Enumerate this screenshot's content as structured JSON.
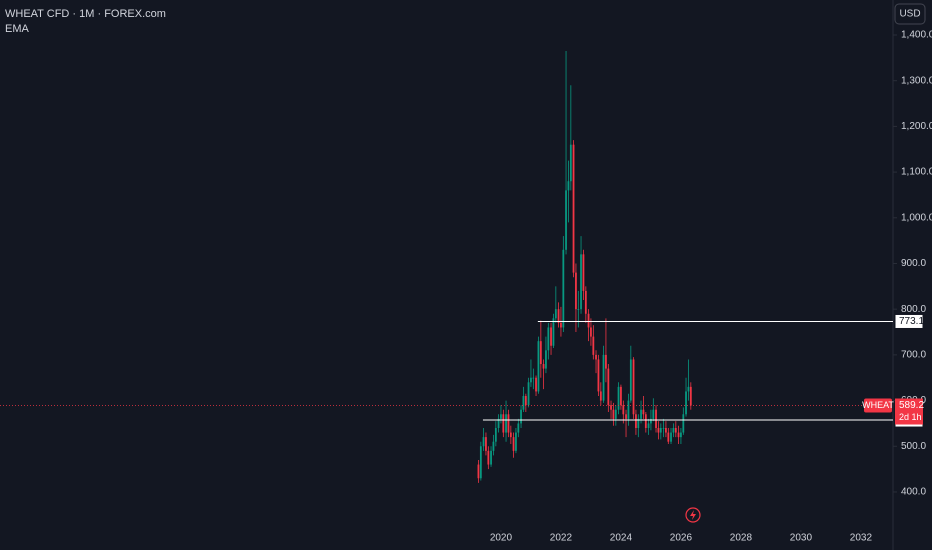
{
  "chart_data": {
    "type": "candlestick",
    "title": "WHEAT CFD · 1M · FOREX.com",
    "indicator": "EMA",
    "currency": "USD",
    "up_color": "#089981",
    "down_color": "#f23645",
    "x": [
      2019.25,
      2019.33,
      2019.42,
      2019.5,
      2019.58,
      2019.67,
      2019.75,
      2019.83,
      2019.92,
      2020.0,
      2020.08,
      2020.17,
      2020.25,
      2020.33,
      2020.42,
      2020.5,
      2020.58,
      2020.67,
      2020.75,
      2020.83,
      2020.92,
      2021.0,
      2021.08,
      2021.17,
      2021.25,
      2021.33,
      2021.42,
      2021.5,
      2021.58,
      2021.67,
      2021.75,
      2021.83,
      2021.92,
      2022.0,
      2022.08,
      2022.17,
      2022.25,
      2022.33,
      2022.42,
      2022.5,
      2022.58,
      2022.67,
      2022.75,
      2022.83,
      2022.92,
      2023.0,
      2023.08,
      2023.17,
      2023.25,
      2023.33,
      2023.42,
      2023.5,
      2023.58,
      2023.67,
      2023.75,
      2023.83,
      2023.92,
      2024.0,
      2024.08,
      2024.17,
      2024.25,
      2024.33,
      2024.42,
      2024.5,
      2024.58,
      2024.67,
      2024.75,
      2024.83,
      2024.92,
      2025.0,
      2025.08,
      2025.17,
      2025.25,
      2025.33,
      2025.42,
      2025.5,
      2025.58,
      2025.67,
      2025.75,
      2025.83,
      2025.92,
      2026.0,
      2026.08,
      2026.17,
      2026.25,
      2026.33
    ],
    "open": [
      460,
      430,
      500,
      520,
      490,
      460,
      490,
      510,
      540,
      560,
      570,
      530,
      570,
      530,
      520,
      490,
      530,
      550,
      580,
      610,
      590,
      640,
      650,
      650,
      620,
      730,
      680,
      670,
      710,
      760,
      720,
      780,
      800,
      770,
      760,
      930,
      1060,
      1080,
      1160,
      880,
      800,
      800,
      920,
      840,
      790,
      760,
      740,
      700,
      690,
      620,
      600,
      700,
      670,
      590,
      580,
      560,
      580,
      630,
      590,
      570,
      560,
      600,
      690,
      570,
      540,
      560,
      580,
      570,
      540,
      550,
      560,
      580,
      540,
      530,
      540,
      540,
      530,
      510,
      530,
      540,
      530,
      520,
      530,
      570,
      620,
      630
    ],
    "high": [
      470,
      510,
      540,
      530,
      500,
      500,
      525,
      555,
      570,
      590,
      580,
      600,
      580,
      545,
      530,
      540,
      560,
      590,
      630,
      615,
      650,
      690,
      670,
      655,
      740,
      775,
      690,
      740,
      770,
      770,
      790,
      850,
      815,
      805,
      960,
      1365,
      1125,
      1290,
      1170,
      900,
      840,
      960,
      930,
      850,
      800,
      780,
      765,
      710,
      700,
      640,
      720,
      780,
      680,
      600,
      595,
      590,
      640,
      635,
      600,
      580,
      615,
      720,
      695,
      580,
      570,
      600,
      610,
      575,
      560,
      580,
      605,
      590,
      555,
      550,
      560,
      555,
      540,
      540,
      550,
      555,
      545,
      540,
      585,
      650,
      690,
      640
    ],
    "low": [
      420,
      425,
      490,
      480,
      450,
      455,
      480,
      500,
      530,
      550,
      520,
      510,
      520,
      505,
      475,
      485,
      520,
      540,
      575,
      575,
      585,
      630,
      625,
      610,
      615,
      650,
      625,
      660,
      690,
      700,
      715,
      770,
      760,
      740,
      750,
      920,
      990,
      1060,
      870,
      750,
      760,
      790,
      820,
      770,
      730,
      720,
      690,
      660,
      610,
      590,
      595,
      640,
      575,
      560,
      545,
      545,
      570,
      580,
      550,
      520,
      545,
      595,
      560,
      525,
      520,
      550,
      560,
      530,
      525,
      535,
      555,
      530,
      515,
      515,
      520,
      520,
      505,
      505,
      520,
      520,
      505,
      505,
      525,
      565,
      600,
      580
    ],
    "close": [
      430,
      500,
      520,
      490,
      460,
      490,
      510,
      540,
      560,
      570,
      530,
      570,
      530,
      520,
      490,
      530,
      550,
      580,
      610,
      590,
      640,
      650,
      650,
      620,
      730,
      680,
      670,
      710,
      760,
      720,
      780,
      800,
      770,
      760,
      930,
      1060,
      1080,
      1160,
      880,
      800,
      800,
      920,
      840,
      790,
      760,
      740,
      700,
      690,
      620,
      600,
      700,
      670,
      590,
      580,
      560,
      580,
      630,
      590,
      570,
      560,
      600,
      690,
      570,
      540,
      560,
      580,
      570,
      540,
      550,
      560,
      580,
      540,
      530,
      540,
      540,
      530,
      510,
      530,
      540,
      530,
      520,
      530,
      570,
      620,
      630,
      589.2
    ],
    "levels": [
      {
        "value": 773.1,
        "from": 2021.23
      },
      {
        "value": 557.4,
        "from": 2019.4
      }
    ],
    "last_price": {
      "name": "WHEAT",
      "value": 589.2,
      "countdown": "2d 1h"
    },
    "xlim": [
      2003.3,
      2033.07
    ],
    "ylim": [
      273,
      1476.6
    ],
    "xticks": [
      2020,
      2022,
      2024,
      2026,
      2028,
      2030,
      2032
    ],
    "yticks": [
      {
        "value": 400,
        "label": "400.0"
      },
      {
        "value": 500,
        "label": "500.0"
      },
      {
        "value": 600,
        "label": "600.0"
      },
      {
        "value": 700,
        "label": "700.0"
      },
      {
        "value": 800,
        "label": "800.0"
      },
      {
        "value": 900,
        "label": "900.0"
      },
      {
        "value": 1000,
        "label": "1,000.0"
      },
      {
        "value": 1100,
        "label": "1,100.0"
      },
      {
        "value": 1200,
        "label": "1,200.0"
      },
      {
        "value": 1300,
        "label": "1,300.0"
      },
      {
        "value": 1400,
        "label": "1,400.0"
      }
    ]
  }
}
